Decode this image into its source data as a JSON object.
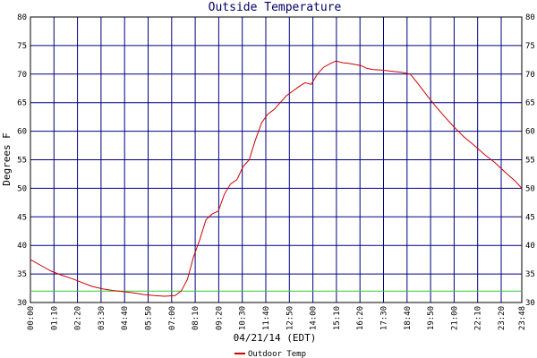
{
  "chart_data": {
    "type": "line",
    "title": "Outside Temperature",
    "xlabel": "04/21/14 (EDT)",
    "ylabel": "Degrees F",
    "ylim": [
      30,
      80
    ],
    "yticks": [
      30,
      35,
      40,
      45,
      50,
      55,
      60,
      65,
      70,
      75,
      80
    ],
    "xlim_hours": [
      0,
      23.8
    ],
    "xtick_labels": [
      "00:00",
      "01:10",
      "02:20",
      "03:30",
      "04:40",
      "05:50",
      "07:00",
      "08:10",
      "09:20",
      "10:30",
      "11:40",
      "12:50",
      "14:00",
      "15:10",
      "16:20",
      "17:30",
      "18:40",
      "19:50",
      "21:00",
      "22:10",
      "23:20",
      "23:48"
    ],
    "grid": true,
    "legend_placement": "bottom",
    "reference_line": {
      "y": 32,
      "color": "#33cc33"
    },
    "series": [
      {
        "name": "Outdoor Temp",
        "color": "#cc0000",
        "x_hours": [
          0,
          0.5,
          1,
          1.5,
          2,
          2.5,
          3,
          3.5,
          4,
          4.5,
          5,
          5.5,
          6,
          6.5,
          7,
          7.3,
          7.6,
          7.9,
          8.2,
          8.5,
          8.8,
          9.1,
          9.4,
          9.7,
          10,
          10.3,
          10.6,
          10.9,
          11.2,
          11.5,
          11.8,
          12.1,
          12.4,
          12.7,
          13,
          13.3,
          13.6,
          13.9,
          14.2,
          14.5,
          14.8,
          15.1,
          15.4,
          15.7,
          16,
          16.3,
          16.6,
          17,
          17.5,
          18,
          18.4,
          18.8,
          19.2,
          19.6,
          20,
          20.5,
          21,
          21.5,
          22,
          22.5,
          23,
          23.5,
          23.8
        ],
        "values": [
          37.5,
          36.5,
          35.5,
          34.8,
          34.2,
          33.5,
          32.8,
          32.4,
          32.1,
          31.9,
          31.7,
          31.4,
          31.2,
          31.1,
          31.2,
          32,
          34,
          38,
          41,
          44.5,
          45.5,
          46,
          49,
          50.8,
          51.5,
          53.8,
          55,
          58.5,
          61.5,
          63,
          63.8,
          65,
          66.2,
          67,
          67.8,
          68.5,
          68.2,
          70,
          71.2,
          71.8,
          72.3,
          72,
          71.9,
          71.7,
          71.5,
          71,
          70.8,
          70.7,
          70.5,
          70.3,
          70,
          68.2,
          66.3,
          64.5,
          62.8,
          60.8,
          59,
          57.5,
          55.9,
          54.5,
          52.8,
          51.2,
          50
        ]
      }
    ]
  }
}
